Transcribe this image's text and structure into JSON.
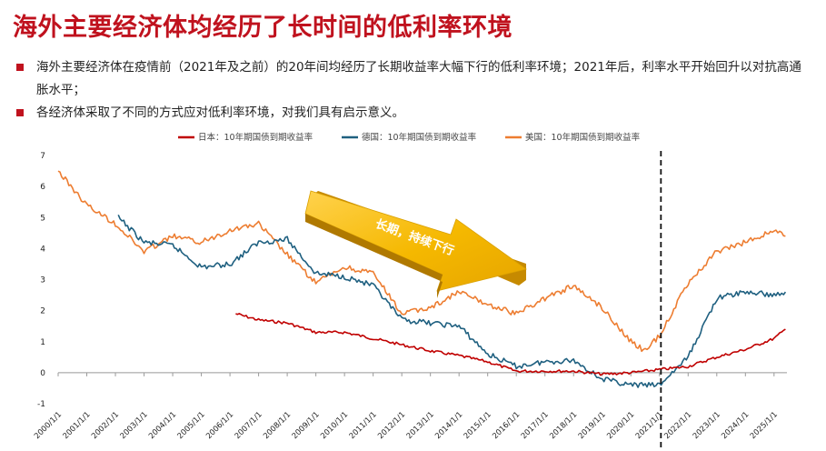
{
  "page": {
    "title": "海外主要经济体均经历了长时间的低利率环境",
    "bullets": [
      "海外主要经济体在疫情前（2021年及之前）的20年间均经历了长期收益率大幅下行的低利率环境；2021年后，利率水平开始回升以对抗高通胀水平；",
      "各经济体采取了不同的方式应对低利率环境，对我们具有启示意义。"
    ],
    "colors": {
      "accent": "#c0121e"
    }
  },
  "chart_data": {
    "type": "line",
    "title": "",
    "xlabel": "",
    "ylabel": "",
    "ylim": [
      -1,
      7
    ],
    "yticks": [
      "-1",
      "0",
      "1",
      "2",
      "3",
      "4",
      "5",
      "6",
      "7"
    ],
    "xticks": [
      "2000/1/1",
      "2001/1/1",
      "2002/1/1",
      "2003/1/1",
      "2004/1/1",
      "2005/1/1",
      "2006/1/1",
      "2007/1/1",
      "2008/1/1",
      "2009/1/1",
      "2010/1/1",
      "2011/1/1",
      "2012/1/1",
      "2013/1/1",
      "2014/1/1",
      "2015/1/1",
      "2016/1/1",
      "2017/1/1",
      "2018/1/1",
      "2019/1/1",
      "2020/1/1",
      "2021/1/1",
      "2022/1/1",
      "2023/1/1",
      "2024/1/1",
      "2025/1/1"
    ],
    "x": [
      2000,
      2001,
      2002,
      2003,
      2004,
      2005,
      2006,
      2007,
      2008,
      2009,
      2010,
      2011,
      2012,
      2013,
      2014,
      2015,
      2016,
      2017,
      2018,
      2019,
      2020,
      2021,
      2022,
      2023,
      2024,
      2025
    ],
    "grid": false,
    "legend_position": "top",
    "series": [
      {
        "name": "日本：10年期国债到期收益率",
        "color": "#c00000",
        "x": [
          2006.2,
          2007,
          2008,
          2009,
          2010,
          2011,
          2012,
          2013,
          2014,
          2015,
          2016,
          2017,
          2018,
          2019,
          2020,
          2021,
          2022,
          2023,
          2024,
          2025,
          2025.4
        ],
        "values": [
          1.9,
          1.7,
          1.6,
          1.3,
          1.3,
          1.1,
          0.9,
          0.7,
          0.55,
          0.35,
          0.05,
          0.05,
          0.05,
          -0.05,
          0.0,
          0.1,
          0.2,
          0.5,
          0.75,
          1.1,
          1.4
        ]
      },
      {
        "name": "德国：10年期国债到期收益率",
        "color": "#1f6080",
        "x": [
          2002.1,
          2003,
          2004,
          2005,
          2006,
          2007,
          2008,
          2009,
          2010,
          2011,
          2012,
          2013,
          2014,
          2015,
          2016,
          2017,
          2018,
          2019,
          2020,
          2021,
          2022,
          2023,
          2024,
          2025,
          2025.4
        ],
        "values": [
          5.0,
          4.2,
          4.1,
          3.4,
          3.5,
          4.2,
          4.3,
          3.2,
          3.1,
          2.8,
          1.7,
          1.6,
          1.5,
          0.6,
          0.2,
          0.35,
          0.4,
          -0.2,
          -0.4,
          -0.4,
          0.5,
          2.4,
          2.6,
          2.5,
          2.6
        ]
      },
      {
        "name": "美国：10年期国债到期收益率",
        "color": "#ed7d31",
        "x": [
          2000,
          2001,
          2002,
          2003,
          2004,
          2005,
          2006,
          2007,
          2008,
          2009,
          2010,
          2011,
          2012,
          2013,
          2014,
          2015,
          2016,
          2017,
          2018,
          2019,
          2020,
          2020.5,
          2021,
          2022,
          2023,
          2024,
          2025,
          2025.4
        ],
        "values": [
          6.5,
          5.4,
          4.8,
          3.9,
          4.4,
          4.2,
          4.6,
          4.8,
          3.8,
          2.9,
          3.4,
          3.2,
          1.9,
          2.1,
          2.6,
          2.2,
          1.9,
          2.4,
          2.8,
          2.1,
          1.0,
          0.7,
          1.2,
          2.9,
          3.9,
          4.2,
          4.6,
          4.4
        ]
      }
    ],
    "annotations": [
      {
        "type": "arrow",
        "label": "长期，持续下行"
      },
      {
        "type": "vline",
        "x": 2021.05,
        "style": "dashed"
      }
    ]
  }
}
